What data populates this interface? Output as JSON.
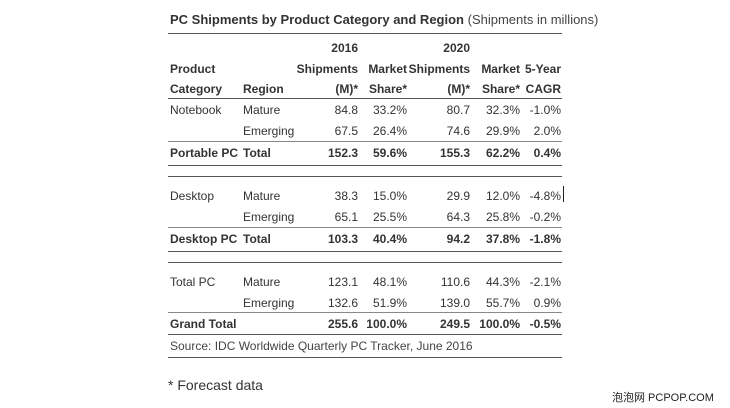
{
  "title": {
    "main": "PC Shipments by Product Category and Region",
    "sub": "(Shipments in millions)"
  },
  "headers": {
    "year_2016": "2016",
    "year_2020": "2020",
    "product": "Product",
    "category": "Category",
    "region": "Region",
    "shipments": "Shipments",
    "unit": "(M)*",
    "market": "Market",
    "share": "Share*",
    "five_year": "5-Year",
    "cagr": "CAGR"
  },
  "rows": [
    {
      "category": "Notebook",
      "region": "Mature",
      "ship2016": "84.8",
      "share2016": "33.2%",
      "ship2020": "80.7",
      "share2020": "32.3%",
      "cagr": "-1.0%"
    },
    {
      "category": "",
      "region": "Emerging",
      "ship2016": "67.5",
      "share2016": "26.4%",
      "ship2020": "74.6",
      "share2020": "29.9%",
      "cagr": "2.0%"
    },
    {
      "category": "Portable PC",
      "region": "Total",
      "ship2016": "152.3",
      "share2016": "59.6%",
      "ship2020": "155.3",
      "share2020": "62.2%",
      "cagr": "0.4%"
    },
    {
      "category": "Desktop",
      "region": "Mature",
      "ship2016": "38.3",
      "share2016": "15.0%",
      "ship2020": "29.9",
      "share2020": "12.0%",
      "cagr": "-4.8%"
    },
    {
      "category": "",
      "region": "Emerging",
      "ship2016": "65.1",
      "share2016": "25.5%",
      "ship2020": "64.3",
      "share2020": "25.8%",
      "cagr": "-0.2%"
    },
    {
      "category": "Desktop PC",
      "region": "Total",
      "ship2016": "103.3",
      "share2016": "40.4%",
      "ship2020": "94.2",
      "share2020": "37.8%",
      "cagr": "-1.8%"
    },
    {
      "category": "Total PC",
      "region": "Mature",
      "ship2016": "123.1",
      "share2016": "48.1%",
      "ship2020": "110.6",
      "share2020": "44.3%",
      "cagr": "-2.1%"
    },
    {
      "category": "",
      "region": "Emerging",
      "ship2016": "132.6",
      "share2016": "51.9%",
      "ship2020": "139.0",
      "share2020": "55.7%",
      "cagr": "0.9%"
    },
    {
      "category": "Grand Total",
      "region": "",
      "ship2016": "255.6",
      "share2016": "100.0%",
      "ship2020": "249.5",
      "share2020": "100.0%",
      "cagr": "-0.5%"
    }
  ],
  "source": "Source: IDC Worldwide Quarterly PC Tracker, June 2016",
  "footnote": "* Forecast data",
  "watermark": "泡泡网 PCPOP.COM"
}
